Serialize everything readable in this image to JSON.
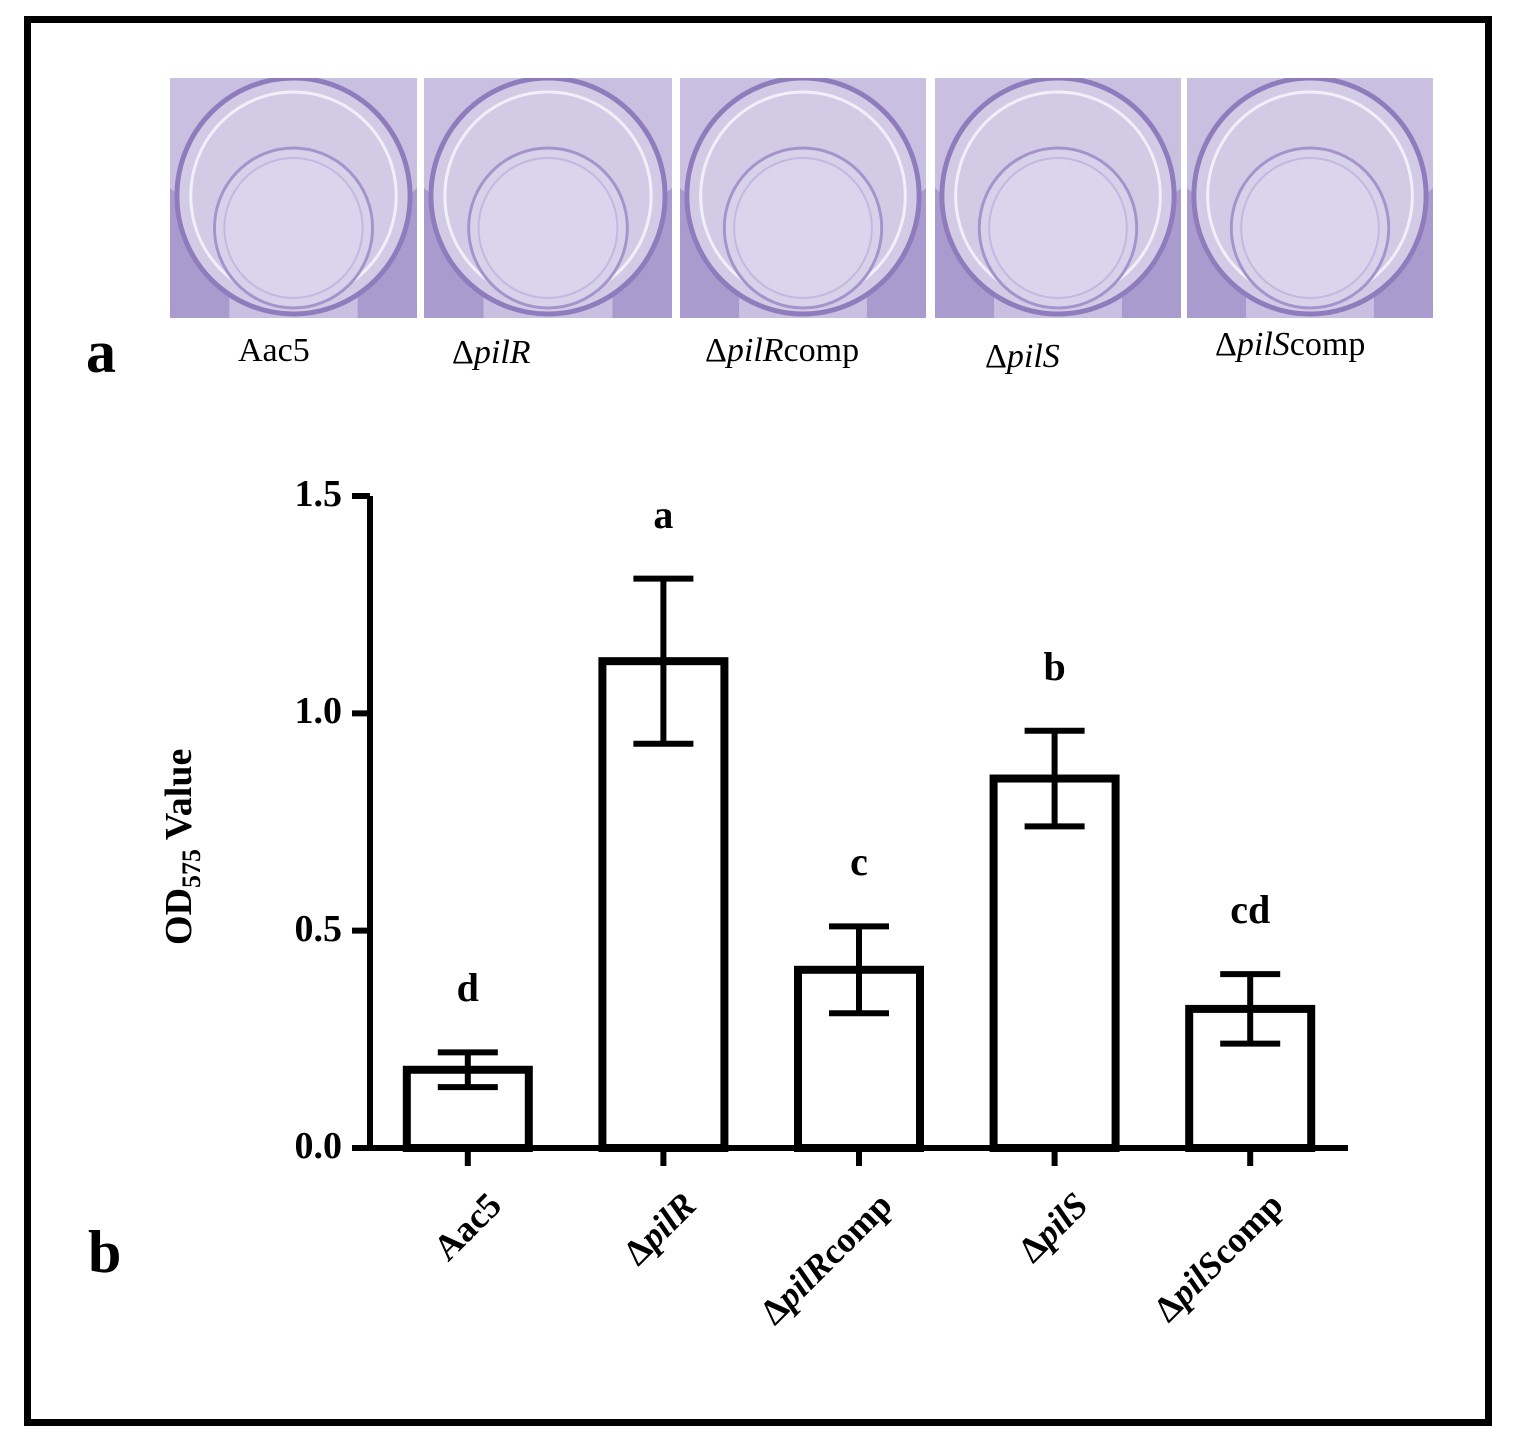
{
  "panel_a": {
    "letter": "a",
    "wells": [
      {
        "delta": "",
        "italic": "",
        "plain": "Aac5"
      },
      {
        "delta": "Δ",
        "italic": "pilR",
        "plain": ""
      },
      {
        "delta": "Δ",
        "italic": "pilR",
        "plain": "comp"
      },
      {
        "delta": "Δ",
        "italic": "pilS",
        "plain": ""
      },
      {
        "delta": "Δ",
        "italic": "pilS",
        "plain": "comp"
      }
    ]
  },
  "panel_b": {
    "letter": "b"
  },
  "chart_data": {
    "type": "bar",
    "title": "",
    "xlabel": "",
    "ylabel_main": "OD",
    "ylabel_sub": "575",
    "ylabel_tail": " Value",
    "ylim": [
      0,
      1.5
    ],
    "yticks": [
      "0.0",
      "0.5",
      "1.0",
      "1.5"
    ],
    "categories": [
      {
        "delta": "",
        "italic": "",
        "plain": "Aac5"
      },
      {
        "delta": "Δ",
        "italic": "pilR",
        "plain": ""
      },
      {
        "delta": "Δ",
        "italic": "pilR",
        "plain": "comp"
      },
      {
        "delta": "Δ",
        "italic": "pilS",
        "plain": ""
      },
      {
        "delta": "Δ",
        "italic": "pilS",
        "plain": "comp"
      }
    ],
    "values": [
      0.18,
      1.12,
      0.41,
      0.85,
      0.32
    ],
    "errors": [
      0.04,
      0.19,
      0.1,
      0.11,
      0.08
    ],
    "significance": [
      "d",
      "a",
      "c",
      "b",
      "cd"
    ]
  }
}
